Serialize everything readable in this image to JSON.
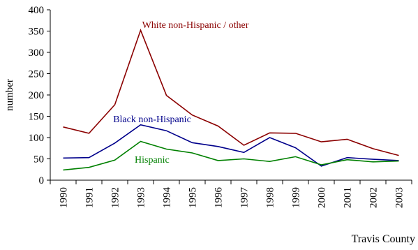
{
  "chart_data": {
    "type": "line",
    "title": "",
    "xlabel": "",
    "ylabel": "number",
    "caption": "Travis County",
    "ylim": [
      0,
      400
    ],
    "yticks": [
      0,
      50,
      100,
      150,
      200,
      250,
      300,
      350,
      400
    ],
    "grid": false,
    "categories": [
      "1990",
      "1991",
      "1992",
      "1993",
      "1994",
      "1995",
      "1996",
      "1997",
      "1998",
      "1999",
      "2000",
      "2001",
      "2002",
      "2003"
    ],
    "series": [
      {
        "name": "White non-Hispanic / other",
        "color": "#8B0000",
        "values": [
          125,
          110,
          177,
          352,
          199,
          153,
          127,
          82,
          111,
          110,
          90,
          96,
          74,
          58
        ]
      },
      {
        "name": "Black non-Hispanic",
        "color": "#00008B",
        "values": [
          52,
          53,
          87,
          130,
          116,
          88,
          79,
          65,
          100,
          76,
          33,
          53,
          49,
          46
        ]
      },
      {
        "name": "Hispanic",
        "color": "#008000",
        "values": [
          24,
          30,
          47,
          91,
          73,
          64,
          46,
          50,
          44,
          55,
          36,
          48,
          43,
          45
        ]
      }
    ]
  }
}
